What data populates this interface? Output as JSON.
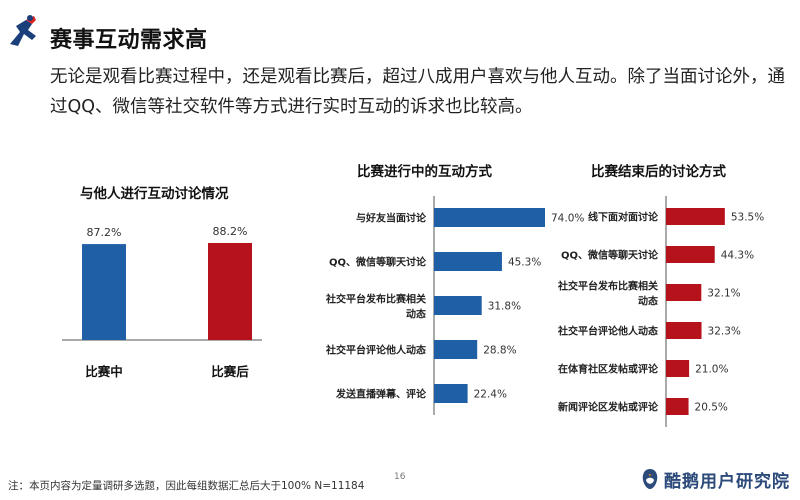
{
  "header": {
    "title": "赛事互动需求高",
    "description": "无论是观看比赛过程中，还是观看比赛后，超过八成用户喜欢与他人互动。除了当面讨论外，通过QQ、微信等社交软件等方式进行实时互动的诉求也比较高。"
  },
  "chart_data": [
    {
      "type": "bar",
      "title": "与他人进行互动讨论情况",
      "categories": [
        "比赛中",
        "比赛后"
      ],
      "values": [
        87.2,
        88.2
      ],
      "value_labels": [
        "87.2%",
        "88.2%"
      ],
      "colors": [
        "#1f5fa5",
        "#b5121b"
      ],
      "ylim": [
        0,
        100
      ]
    },
    {
      "type": "bar",
      "orientation": "horizontal",
      "title": "比赛进行中的互动方式",
      "categories": [
        "与好友当面讨论",
        "QQ、微信等聊天讨论",
        "社交平台发布比赛相关动态",
        "社交平台评论他人动态",
        "发送直播弹幕、评论"
      ],
      "values": [
        74.0,
        45.3,
        31.8,
        28.8,
        22.4
      ],
      "value_labels": [
        "74.0%",
        "45.3%",
        "31.8%",
        "28.8%",
        "22.4%"
      ],
      "color": "#1f5fa5",
      "xlim": [
        0,
        100
      ]
    },
    {
      "type": "bar",
      "orientation": "horizontal",
      "title": "比赛结束后的讨论方式",
      "categories": [
        "线下面对面讨论",
        "QQ、微信等聊天讨论",
        "社交平台发布比赛相关动态",
        "社交平台评论他人动态",
        "在体育社区发帖或评论",
        "新闻评论区发帖或评论"
      ],
      "values": [
        53.5,
        44.3,
        32.1,
        32.3,
        21.0,
        20.5
      ],
      "value_labels": [
        "53.5%",
        "44.3%",
        "32.1%",
        "32.3%",
        "21.0%",
        "20.5%"
      ],
      "color": "#b5121b",
      "xlim": [
        0,
        100
      ]
    }
  ],
  "footer": {
    "note": "注：本页内容为定量调研多选题，因此每组数据汇总后大于100%  N=11184",
    "page_number": "16",
    "brand": "酷鹅用户研究院"
  }
}
